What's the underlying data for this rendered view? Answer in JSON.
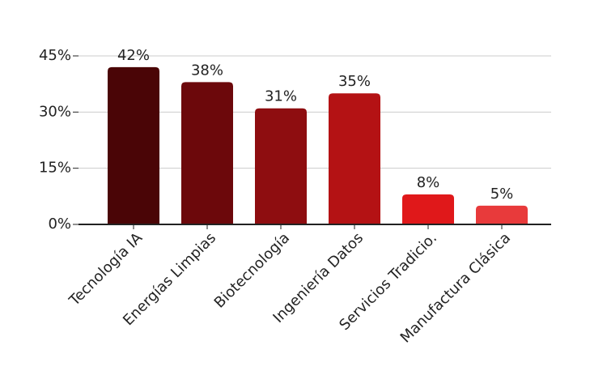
{
  "chart_data": {
    "type": "bar",
    "categories": [
      "Tecnología IA",
      "Energías Limpias",
      "Biotecnología",
      "Ingeniería Datos",
      "Servicios Tradicio.",
      "Manufactura Clásica"
    ],
    "values": [
      42,
      38,
      31,
      35,
      8,
      5
    ],
    "value_labels": [
      "42%",
      "38%",
      "31%",
      "35%",
      "8%",
      "5%"
    ],
    "colors": [
      "#4a0506",
      "#6c080b",
      "#8e0d10",
      "#b41214",
      "#e0181a",
      "#e83a3b"
    ],
    "ylim": [
      0,
      45
    ],
    "yticks": [
      {
        "value": 0,
        "label": "0%"
      },
      {
        "value": 15,
        "label": "15%"
      },
      {
        "value": 30,
        "label": "30%"
      },
      {
        "value": 45,
        "label": "45%"
      }
    ],
    "grid": true
  }
}
